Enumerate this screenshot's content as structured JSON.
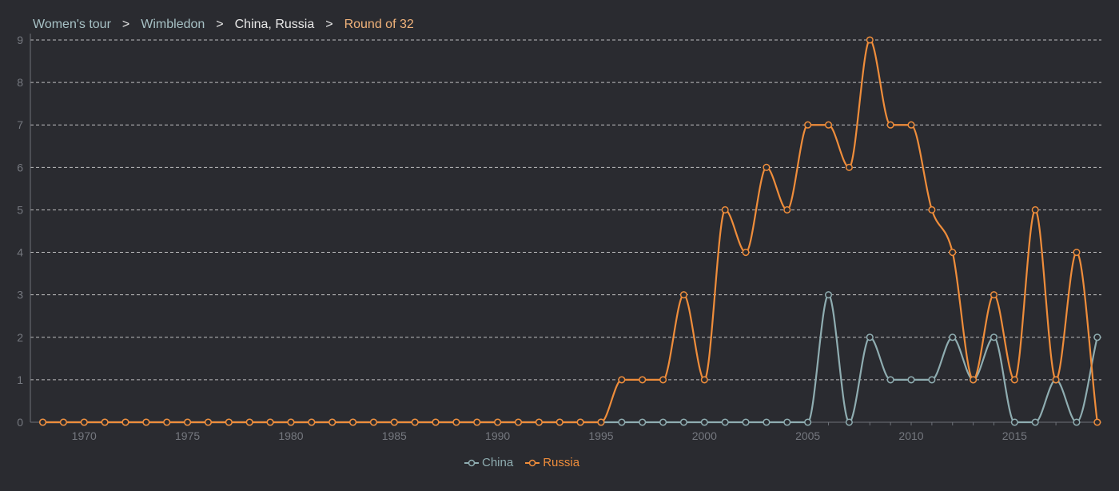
{
  "breadcrumb": {
    "items": [
      "Women's tour",
      "Wimbledon",
      "China, Russia",
      "Round of 32"
    ],
    "separator": ">"
  },
  "colors": {
    "background": "#2a2b30",
    "grid": "#d8d8d8",
    "axis": "#6e7178",
    "tick_text": "#75787f",
    "china": "#8fadb1",
    "russia": "#ef8d3b"
  },
  "chart_data": {
    "type": "line",
    "title": "",
    "xlabel": "",
    "ylabel": "",
    "x": [
      1968,
      1969,
      1970,
      1971,
      1972,
      1973,
      1974,
      1975,
      1976,
      1977,
      1978,
      1979,
      1980,
      1981,
      1982,
      1983,
      1984,
      1985,
      1986,
      1987,
      1988,
      1989,
      1990,
      1991,
      1992,
      1993,
      1994,
      1995,
      1996,
      1997,
      1998,
      1999,
      2000,
      2001,
      2002,
      2003,
      2004,
      2005,
      2006,
      2007,
      2008,
      2009,
      2010,
      2011,
      2012,
      2013,
      2014,
      2015,
      2016,
      2017,
      2018,
      2019
    ],
    "xticks": [
      1970,
      1975,
      1980,
      1985,
      1990,
      1995,
      2000,
      2005,
      2010,
      2015
    ],
    "xlim": [
      1967.4,
      2019.2
    ],
    "yticks": [
      0,
      1,
      2,
      3,
      4,
      5,
      6,
      7,
      8,
      9
    ],
    "ylim": [
      0,
      9
    ],
    "grid": true,
    "legend": "bottom-center",
    "series": [
      {
        "name": "China",
        "color": "#8fadb1",
        "values": [
          0,
          0,
          0,
          0,
          0,
          0,
          0,
          0,
          0,
          0,
          0,
          0,
          0,
          0,
          0,
          0,
          0,
          0,
          0,
          0,
          0,
          0,
          0,
          0,
          0,
          0,
          0,
          0,
          0,
          0,
          0,
          0,
          0,
          0,
          0,
          0,
          0,
          0,
          3,
          0,
          2,
          1,
          1,
          1,
          2,
          1,
          2,
          0,
          0,
          1,
          0,
          2
        ]
      },
      {
        "name": "Russia",
        "color": "#ef8d3b",
        "values": [
          0,
          0,
          0,
          0,
          0,
          0,
          0,
          0,
          0,
          0,
          0,
          0,
          0,
          0,
          0,
          0,
          0,
          0,
          0,
          0,
          0,
          0,
          0,
          0,
          0,
          0,
          0,
          0,
          1,
          1,
          1,
          3,
          1,
          5,
          4,
          6,
          5,
          7,
          7,
          6,
          9,
          7,
          7,
          5,
          4,
          1,
          3,
          1,
          5,
          1,
          4,
          0
        ]
      }
    ]
  }
}
